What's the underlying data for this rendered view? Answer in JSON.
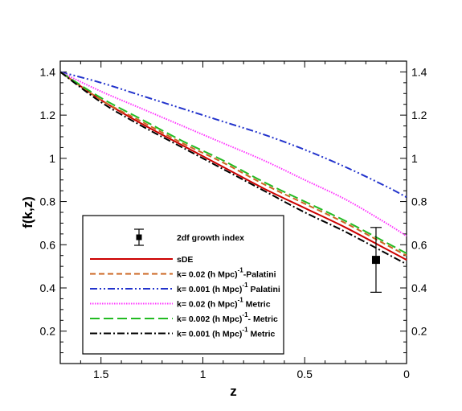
{
  "chart_data": {
    "type": "line",
    "xlabel": "z",
    "ylabel": "f(k,z)",
    "xlim": [
      1.7,
      0
    ],
    "ylim": [
      0.05,
      1.45
    ],
    "x_reversed": true,
    "x_ticks": [
      1.5,
      1,
      0.5,
      0
    ],
    "x_tick_labels": [
      "1.5",
      "1",
      "0.5",
      "0"
    ],
    "y_ticks": [
      0.2,
      0.4,
      0.6,
      0.8,
      1.0,
      1.2,
      1.4
    ],
    "y_tick_labels": [
      "0.2",
      "0.4",
      "0.6",
      "0.8",
      "1",
      "1.2",
      "1.4"
    ],
    "grid": false,
    "legend_position": "bottom-left",
    "observation": {
      "label": "2df growth index",
      "z": 0.15,
      "value": 0.53,
      "error_low": 0.38,
      "error_high": 0.68
    },
    "series": [
      {
        "name": "sDE",
        "legend_parts": [
          "sDE"
        ],
        "color": "#cc0000",
        "style": "solid",
        "x": [
          1.7,
          1.5,
          1.3,
          1.1,
          0.9,
          0.7,
          0.5,
          0.3,
          0.1,
          0.0
        ],
        "y": [
          1.4,
          1.27,
          1.16,
          1.06,
          0.96,
          0.86,
          0.77,
          0.68,
          0.58,
          0.53
        ]
      },
      {
        "name": "k= 0.02 (h Mpc)-1-Palatini",
        "legend_parts": [
          "k= 0.02 (h Mpc)",
          "-1",
          "-Palatini"
        ],
        "color": "#cc6622",
        "style": "dashed",
        "x": [
          1.7,
          1.5,
          1.3,
          1.1,
          0.9,
          0.7,
          0.5,
          0.3,
          0.1,
          0.0
        ],
        "y": [
          1.4,
          1.27,
          1.17,
          1.07,
          0.98,
          0.88,
          0.79,
          0.7,
          0.6,
          0.55
        ]
      },
      {
        "name": "k= 0.001 (h Mpc)-1 Palatini",
        "legend_parts": [
          "k= 0.001 (h Mpc)",
          "-1",
          " Palatini"
        ],
        "color": "#2233cc",
        "style": "dashdotdot",
        "x": [
          1.7,
          1.5,
          1.3,
          1.1,
          0.9,
          0.7,
          0.5,
          0.3,
          0.1,
          0.0
        ],
        "y": [
          1.4,
          1.35,
          1.29,
          1.23,
          1.17,
          1.11,
          1.04,
          0.96,
          0.87,
          0.82
        ]
      },
      {
        "name": "k= 0.02 (h Mpc)-1 Metric",
        "legend_parts": [
          "k= 0.02 (h Mpc)",
          "-1",
          " Metric"
        ],
        "color": "#ff33ff",
        "style": "dotted",
        "x": [
          1.7,
          1.5,
          1.3,
          1.1,
          0.9,
          0.7,
          0.5,
          0.3,
          0.1,
          0.0
        ],
        "y": [
          1.4,
          1.31,
          1.23,
          1.15,
          1.07,
          0.99,
          0.9,
          0.81,
          0.7,
          0.64
        ]
      },
      {
        "name": "k= 0.002 (h Mpc)-1- Metric",
        "legend_parts": [
          "k= 0.002 (h Mpc)",
          "-1",
          "- Metric"
        ],
        "color": "#22bb22",
        "style": "longdash",
        "x": [
          1.7,
          1.5,
          1.3,
          1.1,
          0.9,
          0.7,
          0.5,
          0.3,
          0.1,
          0.0
        ],
        "y": [
          1.4,
          1.28,
          1.18,
          1.08,
          0.99,
          0.89,
          0.8,
          0.71,
          0.61,
          0.56
        ]
      },
      {
        "name": "k= 0.001 (h Mpc)-1 Metric",
        "legend_parts": [
          "k= 0.001 (h Mpc)",
          "-1",
          " Metric"
        ],
        "color": "#000000",
        "style": "dashdot",
        "x": [
          1.7,
          1.5,
          1.3,
          1.1,
          0.9,
          0.7,
          0.5,
          0.3,
          0.1,
          0.0
        ],
        "y": [
          1.4,
          1.26,
          1.15,
          1.05,
          0.95,
          0.85,
          0.75,
          0.66,
          0.56,
          0.51
        ]
      }
    ]
  }
}
